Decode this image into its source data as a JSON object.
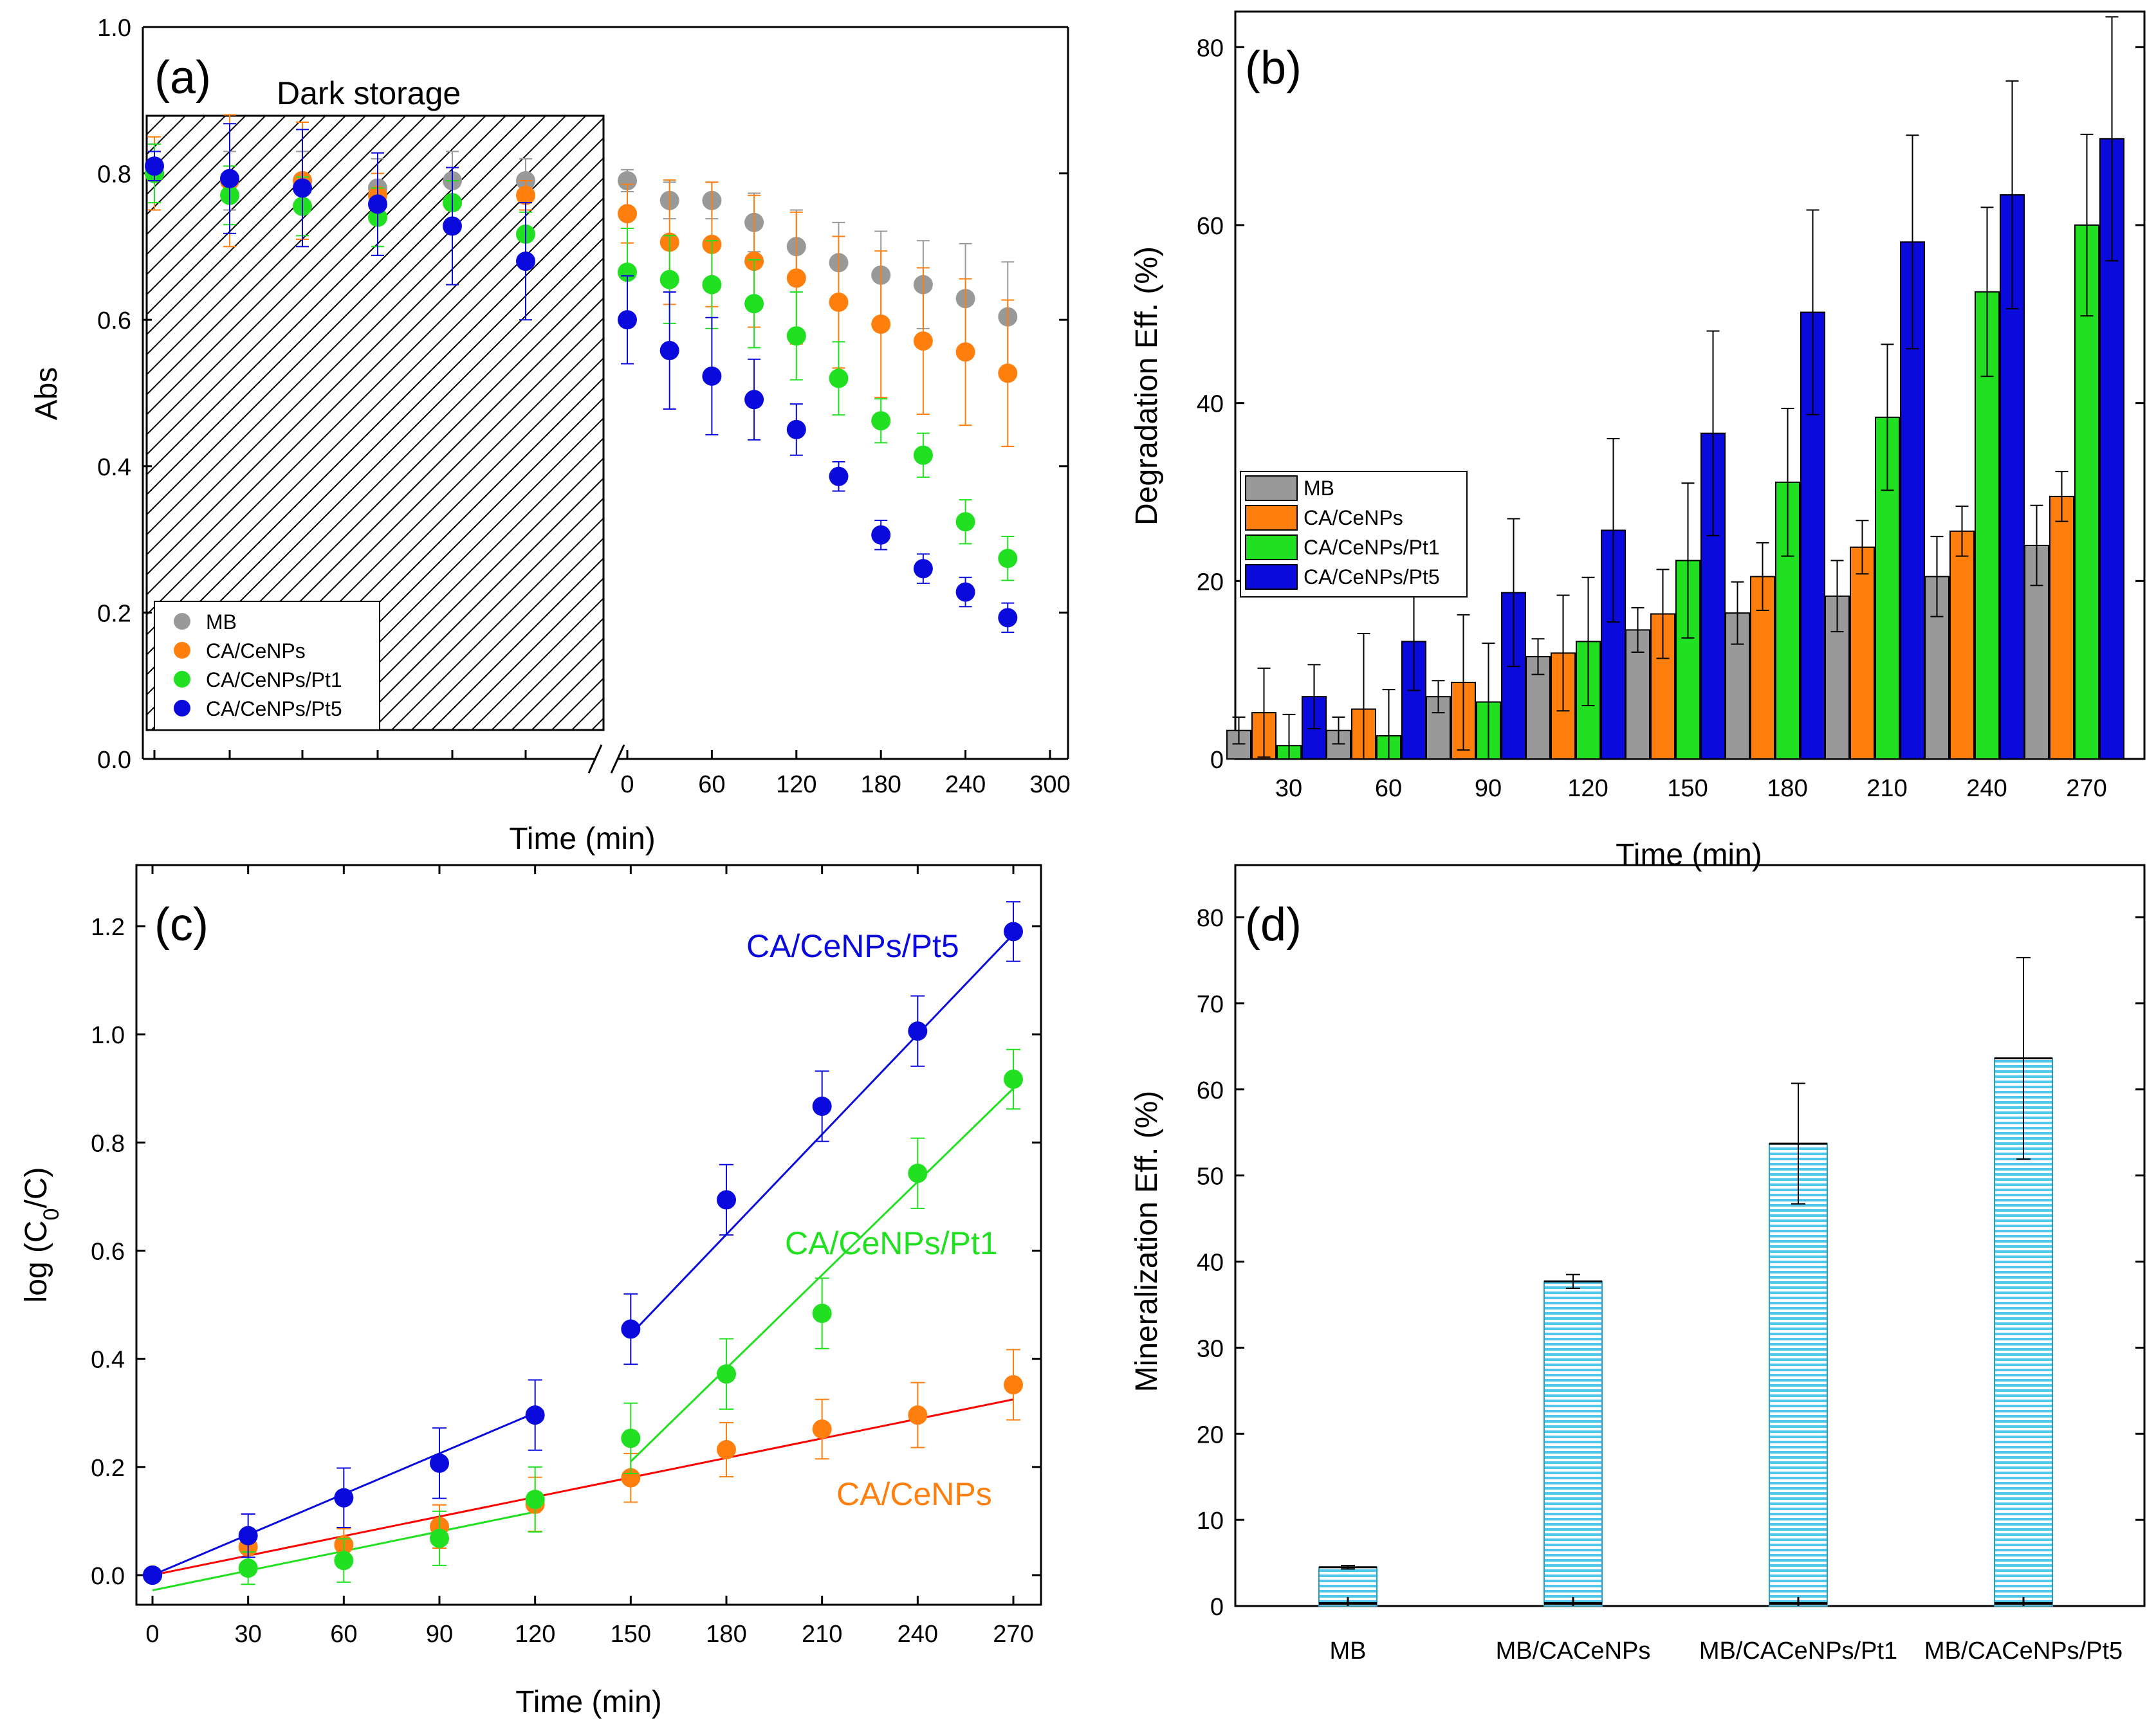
{
  "figure": {
    "description_panels": [
      "a",
      "b",
      "c",
      "d"
    ]
  },
  "colors": {
    "MB": "#999999",
    "CA/CeNPs": "#ff7f0e",
    "CA/CeNPs/Pt1": "#21e021",
    "CA/CeNPs/Pt5": "#0a0adc",
    "mineralization_fill": "#5bd1f0",
    "fit_red": "#ff0000"
  },
  "chart_data": [
    {
      "panel": "a",
      "panel_label": "(a)",
      "type": "scatter",
      "xlabel": "Time (min)",
      "ylabel": "Abs",
      "ylim": [
        0,
        1.0
      ],
      "yticks": [
        "0.0",
        "0.2",
        "0.4",
        "0.6",
        "0.8",
        "1.0"
      ],
      "xticks_light": [
        "0",
        "60",
        "120",
        "180",
        "240",
        "300"
      ],
      "xlim_light": [
        -5,
        300
      ],
      "dark_region_label": "Dark storage",
      "dark_x": [
        1,
        2,
        3,
        4,
        5,
        6
      ],
      "light_x": [
        0,
        30,
        60,
        90,
        120,
        150,
        180,
        210,
        240,
        270
      ],
      "legend_position": "lower-left",
      "series": [
        {
          "name": "MB",
          "color_key": "MB",
          "dark": [
            0.8,
            0.79,
            0.79,
            0.78,
            0.79,
            0.79
          ],
          "dark_err": [
            0.04,
            0.04,
            0.04,
            0.04,
            0.04,
            0.03
          ],
          "light": [
            0.79,
            0.763,
            0.763,
            0.733,
            0.7,
            0.678,
            0.661,
            0.648,
            0.629,
            0.604
          ],
          "light_err": [
            0.015,
            0.025,
            0.025,
            0.04,
            0.05,
            0.055,
            0.06,
            0.06,
            0.075,
            0.075
          ]
        },
        {
          "name": "CA/CeNPs",
          "color_key": "CA/CeNPs",
          "dark": [
            0.8,
            0.79,
            0.79,
            0.77,
            0.76,
            0.77
          ],
          "dark_err": [
            0.05,
            0.09,
            0.08,
            0.03,
            0.03,
            0.02
          ],
          "light": [
            0.745,
            0.706,
            0.703,
            0.68,
            0.657,
            0.624,
            0.594,
            0.571,
            0.556,
            0.527
          ],
          "light_err": [
            0.04,
            0.085,
            0.085,
            0.09,
            0.09,
            0.09,
            0.1,
            0.1,
            0.1,
            0.1
          ]
        },
        {
          "name": "CA/CeNPs/Pt1",
          "color_key": "CA/CeNPs/Pt1",
          "dark": [
            0.8,
            0.77,
            0.755,
            0.74,
            0.76,
            0.717
          ],
          "dark_err": [
            0.04,
            0.04,
            0.04,
            0.04,
            0.03,
            0.03
          ],
          "light": [
            0.665,
            0.655,
            0.648,
            0.622,
            0.578,
            0.52,
            0.462,
            0.415,
            0.324,
            0.274
          ],
          "light_err": [
            0.06,
            0.06,
            0.06,
            0.06,
            0.06,
            0.05,
            0.03,
            0.03,
            0.03,
            0.03
          ]
        },
        {
          "name": "CA/CeNPs/Pt5",
          "color_key": "CA/CeNPs/Pt5",
          "dark": [
            0.81,
            0.793,
            0.78,
            0.758,
            0.728,
            0.68
          ],
          "dark_err": [
            0.02,
            0.075,
            0.08,
            0.07,
            0.08,
            0.08
          ],
          "light": [
            0.6,
            0.558,
            0.523,
            0.491,
            0.45,
            0.386,
            0.306,
            0.26,
            0.228,
            0.193
          ],
          "light_err": [
            0.06,
            0.08,
            0.08,
            0.055,
            0.035,
            0.02,
            0.02,
            0.02,
            0.02,
            0.02
          ]
        }
      ]
    },
    {
      "panel": "b",
      "panel_label": "(b)",
      "type": "bar",
      "xlabel": "Time (min)",
      "ylabel": "Degradation Eff.  (%)",
      "ylim": [
        0,
        84
      ],
      "yticks": [
        "0",
        "20",
        "40",
        "60",
        "80"
      ],
      "categories": [
        "30",
        "60",
        "90",
        "120",
        "150",
        "180",
        "210",
        "240",
        "270"
      ],
      "legend_position": "center-left",
      "series": [
        {
          "name": "MB",
          "color_key": "MB",
          "values": [
            3.2,
            3.2,
            7.0,
            11.5,
            14.5,
            16.4,
            18.3,
            20.5,
            24.0
          ],
          "err": [
            1.5,
            1.5,
            1.8,
            2.0,
            2.5,
            3.5,
            4.0,
            4.5,
            4.5
          ]
        },
        {
          "name": "CA/CeNPs",
          "color_key": "CA/CeNPs",
          "values": [
            5.2,
            5.6,
            8.6,
            11.9,
            16.3,
            20.5,
            23.8,
            25.6,
            29.5
          ],
          "err": [
            5.0,
            8.5,
            7.6,
            6.5,
            5.0,
            3.8,
            3.0,
            2.8,
            2.8
          ]
        },
        {
          "name": "CA/CeNPs/Pt1",
          "color_key": "CA/CeNPs/Pt1",
          "values": [
            1.5,
            2.6,
            6.4,
            13.2,
            22.3,
            31.1,
            38.4,
            52.5,
            60.0
          ],
          "err": [
            3.5,
            5.2,
            6.6,
            7.2,
            8.7,
            8.3,
            8.2,
            9.5,
            10.2
          ]
        },
        {
          "name": "CA/CeNPs/Pt5",
          "color_key": "CA/CeNPs/Pt5",
          "values": [
            7.0,
            13.2,
            18.7,
            25.7,
            36.6,
            50.2,
            58.1,
            63.4,
            69.7
          ],
          "err": [
            3.6,
            5.5,
            8.3,
            10.3,
            11.5,
            11.5,
            12.0,
            12.8,
            13.7
          ]
        }
      ]
    },
    {
      "panel": "c",
      "panel_label": "(c)",
      "type": "scatter",
      "xlabel": "Time (min)",
      "ylabel": "log (C",
      "ylabel_sub": "0",
      "ylabel_end": "/C)",
      "xlim": [
        -5,
        280
      ],
      "ylim": [
        -0.05,
        1.3
      ],
      "xticks": [
        "0",
        "30",
        "60",
        "90",
        "120",
        "150",
        "180",
        "210",
        "240",
        "270"
      ],
      "yticks": [
        "0.0",
        "0.2",
        "0.4",
        "0.6",
        "0.8",
        "1.0",
        "1.2"
      ],
      "x": [
        0,
        30,
        60,
        90,
        120,
        150,
        180,
        210,
        240,
        270
      ],
      "series": [
        {
          "name": "CA/CeNPs",
          "color_key": "CA/CeNPs",
          "annotation": "CA/CeNPs",
          "values": [
            0.0,
            0.052,
            0.056,
            0.09,
            0.131,
            0.18,
            0.232,
            0.27,
            0.296,
            0.352
          ],
          "err": [
            0.0,
            0.03,
            0.03,
            0.04,
            0.05,
            0.045,
            0.05,
            0.055,
            0.06,
            0.065
          ],
          "fits": [
            {
              "x0": 0,
              "y0": 0.0,
              "x1": 270,
              "y1": 0.325,
              "color_key": "fit_red"
            }
          ]
        },
        {
          "name": "CA/CeNPs/Pt1",
          "color_key": "CA/CeNPs/Pt1",
          "annotation": "CA/CeNPs/Pt1",
          "values": [
            0.0,
            0.013,
            0.027,
            0.068,
            0.14,
            0.253,
            0.372,
            0.484,
            0.743,
            0.917
          ],
          "err": [
            0.0,
            0.03,
            0.04,
            0.05,
            0.06,
            0.065,
            0.065,
            0.065,
            0.065,
            0.055
          ],
          "fits": [
            {
              "x0": 0,
              "y0": -0.028,
              "x1": 120,
              "y1": 0.117
            },
            {
              "x0": 150,
              "y0": 0.21,
              "x1": 270,
              "y1": 0.9
            }
          ]
        },
        {
          "name": "CA/CeNPs/Pt5",
          "color_key": "CA/CeNPs/Pt5",
          "annotation": "CA/CeNPs/Pt5",
          "values": [
            0.0,
            0.073,
            0.143,
            0.207,
            0.296,
            0.455,
            0.694,
            0.867,
            1.006,
            1.19
          ],
          "err": [
            0.0,
            0.04,
            0.055,
            0.065,
            0.065,
            0.065,
            0.065,
            0.065,
            0.065,
            0.055
          ],
          "fits": [
            {
              "x0": 0,
              "y0": 0.0,
              "x1": 120,
              "y1": 0.3
            },
            {
              "x0": 150,
              "y0": 0.445,
              "x1": 270,
              "y1": 1.185
            }
          ]
        }
      ]
    },
    {
      "panel": "d",
      "panel_label": "(d)",
      "type": "bar",
      "ylabel": "Mineralization Eff.  (%)",
      "ylim": [
        0,
        84
      ],
      "yticks": [
        "0",
        "10",
        "20",
        "30",
        "40",
        "50",
        "60",
        "70",
        "80"
      ],
      "categories": [
        "MB",
        "MB/CACeNPs",
        "MB/CACeNPs/Pt1",
        "MB/CACeNPs/Pt5"
      ],
      "values": [
        4.5,
        37.7,
        53.7,
        63.6
      ],
      "err": [
        0.2,
        0.8,
        7.0,
        11.7
      ],
      "color_key": "mineralization_fill"
    }
  ]
}
